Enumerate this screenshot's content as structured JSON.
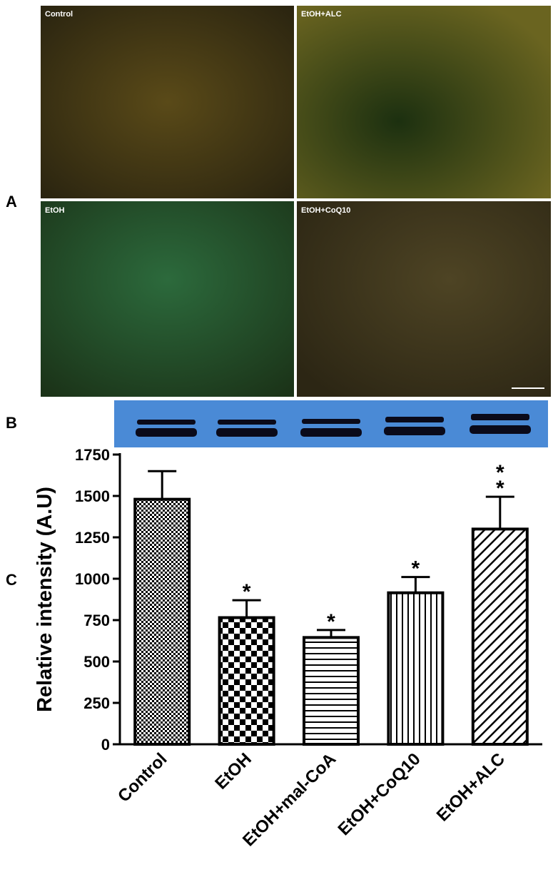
{
  "panels": {
    "a": {
      "label": "A",
      "images": [
        "Control",
        "EtOH+ALC",
        "EtOH",
        "EtOH+CoQ10"
      ]
    },
    "b": {
      "label": "B"
    },
    "c": {
      "label": "C"
    }
  },
  "chart_data": {
    "type": "bar",
    "y_label": "Relative intensity (A.U)",
    "categories": [
      "Control",
      "EtOH",
      "EtOH+mal-CoA",
      "EtOH+CoQ10",
      "EtOH+ALC"
    ],
    "values": [
      1480,
      765,
      645,
      915,
      1300
    ],
    "errors": [
      170,
      105,
      45,
      95,
      195
    ],
    "annotations": [
      {
        "category": "EtOH",
        "text": "*"
      },
      {
        "category": "EtOH+mal-CoA",
        "text": "*"
      },
      {
        "category": "EtOH+CoQ10",
        "text": "*"
      },
      {
        "category": "EtOH+ALC",
        "text": "*"
      },
      {
        "category": "EtOH+ALC",
        "text": "*"
      }
    ],
    "color": "#000000",
    "ylim": [
      0,
      1750
    ],
    "yticks": [
      0,
      250,
      500,
      750,
      1000,
      1250,
      1500,
      1750
    ],
    "grid": false
  }
}
